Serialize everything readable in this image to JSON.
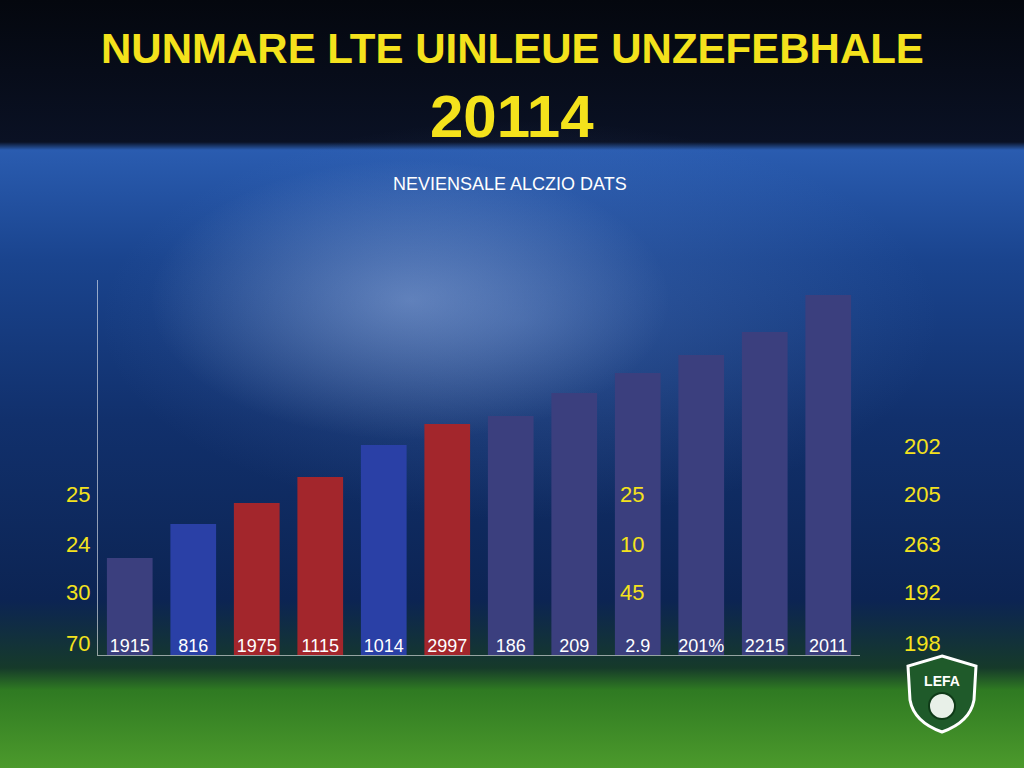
{
  "chart_data": {
    "type": "bar",
    "title": "NUNMARE LTE UINLEUE UNZEFEBHALE",
    "subtitle": "20114",
    "categories": [
      "1915",
      "816",
      "1975",
      "1115",
      "1014",
      "2997",
      "186",
      "209",
      "2.9",
      "201%",
      "2215",
      "2011"
    ],
    "values": [
      97,
      131,
      152,
      178,
      210,
      231,
      239,
      262,
      282,
      300,
      323,
      360
    ],
    "colors": [
      "#3b3f7e",
      "#2a40a6",
      "#a3262c",
      "#a3262c",
      "#2a40a6",
      "#a3262c",
      "#3b3f7e",
      "#3b3f7e",
      "#3b3f7e",
      "#3b3f7e",
      "#3b3f7e",
      "#3b3f7e"
    ],
    "ylim": [
      0,
      375
    ],
    "grid": false,
    "tick_labels": "x",
    "annotations": {
      "header": "NEVIENSALE ALCZIO DATS",
      "left": [
        "25",
        "24",
        "30",
        "70"
      ],
      "middle": [
        "25",
        "10",
        "45"
      ],
      "right": [
        "202",
        "205",
        "263",
        "192",
        "198"
      ],
      "logo": "LEFA"
    }
  }
}
